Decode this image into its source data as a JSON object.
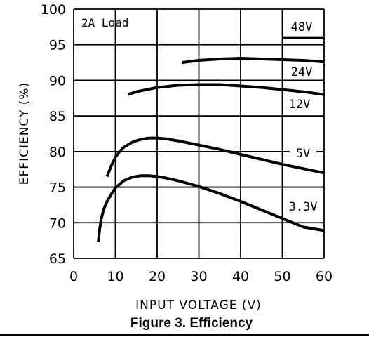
{
  "figure": {
    "caption": "Figure 3. Efficiency"
  },
  "chart_data": {
    "type": "line",
    "title": "",
    "xlabel": "INPUT VOLTAGE (V)",
    "ylabel": "EFFICIENCY (%)",
    "xlim": [
      0,
      60
    ],
    "ylim": [
      65,
      100
    ],
    "xticks": [
      0,
      10,
      20,
      30,
      40,
      50,
      60
    ],
    "yticks": [
      65,
      70,
      75,
      80,
      85,
      90,
      95,
      100
    ],
    "grid": true,
    "annotation": "2A Load",
    "series": [
      {
        "name": "48V",
        "x": [
          50,
          60
        ],
        "y": [
          96,
          96
        ]
      },
      {
        "name": "24V",
        "x": [
          26,
          30,
          35,
          40,
          45,
          50,
          55,
          60
        ],
        "y": [
          92.5,
          92.8,
          93.0,
          93.1,
          93.0,
          92.9,
          92.8,
          92.6
        ]
      },
      {
        "name": "12V",
        "x": [
          13,
          15,
          20,
          25,
          30,
          35,
          40,
          45,
          50,
          55,
          60
        ],
        "y": [
          88.0,
          88.4,
          89.0,
          89.3,
          89.4,
          89.4,
          89.2,
          89.0,
          88.7,
          88.4,
          88.0
        ]
      },
      {
        "name": "5V",
        "x": [
          8,
          9,
          10,
          11,
          12,
          14,
          16,
          18,
          20,
          22,
          25,
          30,
          35,
          40,
          45,
          50,
          55,
          60
        ],
        "y": [
          76.5,
          78.0,
          79.2,
          80.0,
          80.6,
          81.3,
          81.7,
          81.9,
          81.9,
          81.8,
          81.5,
          80.9,
          80.3,
          79.6,
          78.9,
          78.2,
          77.6,
          77.0
        ]
      },
      {
        "name": "3.3V",
        "x": [
          5.9,
          6.2,
          6.6,
          7.2,
          8,
          9,
          10,
          12,
          14,
          16,
          18,
          20,
          22,
          25,
          30,
          35,
          40,
          45,
          50,
          55,
          60
        ],
        "y": [
          67.3,
          69.0,
          70.5,
          71.9,
          73.0,
          74.0,
          74.9,
          75.9,
          76.4,
          76.6,
          76.6,
          76.5,
          76.3,
          75.9,
          75.1,
          74.1,
          73.0,
          71.8,
          70.6,
          69.4,
          68.9
        ]
      }
    ]
  }
}
